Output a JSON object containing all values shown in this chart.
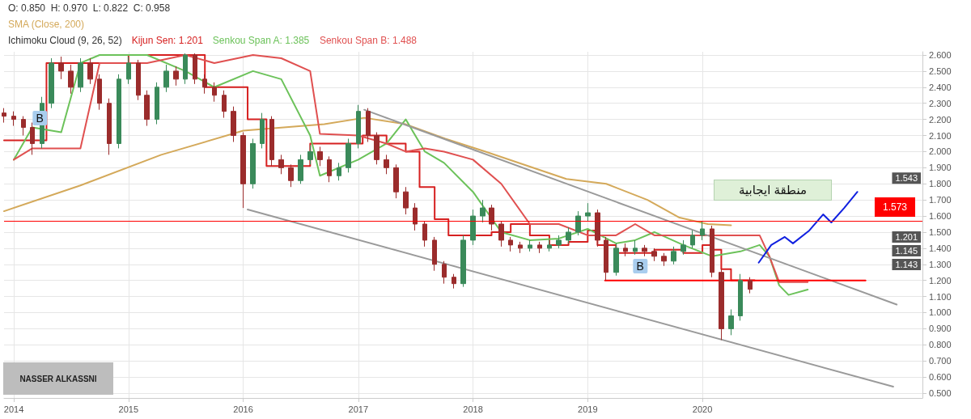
{
  "chart_data": {
    "type": "candlestick",
    "title": "O: 0.850  H: 0.970  L: 0.822  C: 0.958",
    "subtitle": "Ichimoku Cloud (9, 26, 52)",
    "x": [
      "2013-12",
      "2014-01",
      "2014-02",
      "2014-03",
      "2014-04",
      "2014-05",
      "2014-06",
      "2014-07",
      "2014-08",
      "2014-09",
      "2014-10",
      "2014-11",
      "2014-12",
      "2015-01",
      "2015-02",
      "2015-03",
      "2015-04",
      "2015-05",
      "2015-06",
      "2015-07",
      "2015-08",
      "2015-09",
      "2015-10",
      "2015-11",
      "2015-12",
      "2016-01",
      "2016-02",
      "2016-03",
      "2016-04",
      "2016-05",
      "2016-06",
      "2016-07",
      "2016-08",
      "2016-09",
      "2016-10",
      "2016-11",
      "2016-12",
      "2017-01",
      "2017-02",
      "2017-03",
      "2017-04",
      "2017-05",
      "2017-06",
      "2017-07",
      "2017-08",
      "2017-09",
      "2017-10",
      "2017-11",
      "2017-12",
      "2018-01",
      "2018-02",
      "2018-03",
      "2018-04",
      "2018-05",
      "2018-06",
      "2018-07",
      "2018-08",
      "2018-09",
      "2018-10",
      "2018-11",
      "2018-12",
      "2019-01",
      "2019-02",
      "2019-03",
      "2019-04",
      "2019-05",
      "2019-06",
      "2019-07",
      "2019-08",
      "2019-09",
      "2019-10",
      "2019-11",
      "2019-12",
      "2020-01",
      "2020-02",
      "2020-03",
      "2020-04",
      "2020-05",
      "2020-06"
    ],
    "xlim": [
      "2013-12-01",
      "2021-12-01"
    ],
    "xticks": [
      "2014",
      "2015",
      "2016",
      "2017",
      "2018",
      "2019",
      "2020"
    ],
    "ylim": [
      0.47,
      2.62
    ],
    "yticks": [
      {
        "value": 0.5,
        "label": "0.500"
      },
      {
        "value": 0.6,
        "label": "0.600"
      },
      {
        "value": 0.7,
        "label": "0.700"
      },
      {
        "value": 0.8,
        "label": "0.800"
      },
      {
        "value": 0.9,
        "label": "0.900"
      },
      {
        "value": 1.0,
        "label": "1.000"
      },
      {
        "value": 1.1,
        "label": "1.100"
      },
      {
        "value": 1.2,
        "label": "1.200"
      },
      {
        "value": 1.3,
        "label": "1.300"
      },
      {
        "value": 1.4,
        "label": "1.400"
      },
      {
        "value": 1.5,
        "label": "1.500"
      },
      {
        "value": 1.6,
        "label": "1.600"
      },
      {
        "value": 1.7,
        "label": "1.700"
      },
      {
        "value": 1.8,
        "label": "1.800"
      },
      {
        "value": 1.9,
        "label": "1.900"
      },
      {
        "value": 2.0,
        "label": "2.000"
      },
      {
        "value": 2.1,
        "label": "2.100"
      },
      {
        "value": 2.2,
        "label": "2.200"
      },
      {
        "value": 2.3,
        "label": "2.300"
      },
      {
        "value": 2.4,
        "label": "2.400"
      },
      {
        "value": 2.5,
        "label": "2.500"
      },
      {
        "value": 2.6,
        "label": "2.600"
      }
    ],
    "grid": true,
    "marker": "none",
    "series": [
      {
        "ohlc": [
          [
            2.24,
            2.27,
            2.18,
            2.22
          ],
          [
            2.22,
            2.25,
            2.16,
            2.2
          ],
          [
            2.2,
            2.22,
            2.1,
            2.15
          ],
          [
            2.15,
            2.18,
            1.98,
            2.05
          ],
          [
            2.05,
            2.34,
            2.02,
            2.3
          ],
          [
            2.3,
            2.58,
            2.27,
            2.55
          ],
          [
            2.55,
            2.59,
            2.45,
            2.5
          ],
          [
            2.5,
            2.54,
            2.36,
            2.4
          ],
          [
            2.4,
            2.58,
            2.37,
            2.55
          ],
          [
            2.55,
            2.58,
            2.42,
            2.45
          ],
          [
            2.45,
            2.48,
            2.26,
            2.3
          ],
          [
            2.3,
            2.33,
            1.98,
            2.05
          ],
          [
            2.05,
            2.48,
            2.02,
            2.45
          ],
          [
            2.45,
            2.59,
            2.42,
            2.55
          ],
          [
            2.55,
            2.57,
            2.32,
            2.35
          ],
          [
            2.35,
            2.38,
            2.16,
            2.2
          ],
          [
            2.2,
            2.43,
            2.17,
            2.4
          ],
          [
            2.4,
            2.54,
            2.37,
            2.5
          ],
          [
            2.5,
            2.53,
            2.41,
            2.45
          ],
          [
            2.45,
            2.61,
            2.42,
            2.6
          ],
          [
            2.6,
            2.61,
            2.42,
            2.45
          ],
          [
            2.45,
            2.48,
            2.36,
            2.4
          ],
          [
            2.4,
            2.43,
            2.31,
            2.35
          ],
          [
            2.35,
            2.38,
            2.21,
            2.25
          ],
          [
            2.25,
            2.28,
            2.06,
            2.1
          ],
          [
            2.1,
            2.12,
            1.65,
            1.8
          ],
          [
            1.8,
            2.08,
            1.77,
            2.05
          ],
          [
            2.05,
            2.24,
            2.02,
            2.2
          ],
          [
            2.2,
            2.22,
            1.91,
            1.95
          ],
          [
            1.95,
            1.98,
            1.86,
            1.9
          ],
          [
            1.9,
            1.92,
            1.78,
            1.82
          ],
          [
            1.82,
            1.98,
            1.8,
            1.95
          ],
          [
            1.95,
            2.04,
            1.92,
            2.0
          ],
          [
            2.0,
            2.03,
            1.91,
            1.95
          ],
          [
            1.95,
            1.97,
            1.81,
            1.85
          ],
          [
            1.85,
            1.93,
            1.82,
            1.9
          ],
          [
            1.9,
            2.08,
            1.87,
            2.05
          ],
          [
            2.05,
            2.29,
            2.02,
            2.25
          ],
          [
            2.25,
            2.27,
            2.06,
            2.1
          ],
          [
            2.1,
            2.12,
            1.92,
            1.95
          ],
          [
            1.95,
            1.98,
            1.86,
            1.9
          ],
          [
            1.9,
            1.92,
            1.71,
            1.75
          ],
          [
            1.75,
            1.78,
            1.61,
            1.65
          ],
          [
            1.65,
            1.68,
            1.51,
            1.55
          ],
          [
            1.55,
            1.57,
            1.41,
            1.45
          ],
          [
            1.45,
            1.47,
            1.26,
            1.3
          ],
          [
            1.3,
            1.32,
            1.18,
            1.22
          ],
          [
            1.22,
            1.24,
            1.15,
            1.18
          ],
          [
            1.18,
            1.48,
            1.16,
            1.45
          ],
          [
            1.45,
            1.64,
            1.42,
            1.6
          ],
          [
            1.6,
            1.7,
            1.56,
            1.65
          ],
          [
            1.65,
            1.67,
            1.51,
            1.55
          ],
          [
            1.55,
            1.57,
            1.41,
            1.45
          ],
          [
            1.45,
            1.47,
            1.38,
            1.42
          ],
          [
            1.42,
            1.44,
            1.37,
            1.4
          ],
          [
            1.4,
            1.45,
            1.38,
            1.42
          ],
          [
            1.42,
            1.44,
            1.37,
            1.4
          ],
          [
            1.4,
            1.45,
            1.38,
            1.42
          ],
          [
            1.42,
            1.48,
            1.4,
            1.45
          ],
          [
            1.45,
            1.53,
            1.43,
            1.5
          ],
          [
            1.5,
            1.63,
            1.48,
            1.6
          ],
          [
            1.6,
            1.68,
            1.57,
            1.62
          ],
          [
            1.62,
            1.64,
            1.41,
            1.45
          ],
          [
            1.45,
            1.47,
            1.2,
            1.25
          ],
          [
            1.25,
            1.43,
            1.23,
            1.4
          ],
          [
            1.4,
            1.43,
            1.35,
            1.38
          ],
          [
            1.38,
            1.45,
            1.36,
            1.4
          ],
          [
            1.4,
            1.42,
            1.35,
            1.38
          ],
          [
            1.38,
            1.4,
            1.32,
            1.35
          ],
          [
            1.35,
            1.37,
            1.29,
            1.32
          ],
          [
            1.32,
            1.41,
            1.3,
            1.38
          ],
          [
            1.38,
            1.45,
            1.36,
            1.42
          ],
          [
            1.42,
            1.51,
            1.4,
            1.48
          ],
          [
            1.48,
            1.57,
            1.45,
            1.52
          ],
          [
            1.52,
            1.54,
            1.22,
            1.25
          ],
          [
            1.25,
            1.27,
            0.83,
            0.9
          ],
          [
            0.9,
            1.02,
            0.86,
            0.98
          ],
          [
            0.98,
            1.24,
            0.95,
            1.2
          ],
          [
            1.2,
            1.22,
            1.12,
            1.145
          ]
        ],
        "colors": [
          "#9b2c2c",
          "#9b2c2c",
          "#9b2c2c",
          "#9b2c2c",
          "#3a8a5a",
          "#3a8a5a",
          "#9b2c2c",
          "#9b2c2c",
          "#3a8a5a",
          "#9b2c2c",
          "#9b2c2c",
          "#9b2c2c",
          "#3a8a5a",
          "#3a8a5a",
          "#9b2c2c",
          "#9b2c2c",
          "#3a8a5a",
          "#3a8a5a",
          "#9b2c2c",
          "#3a8a5a",
          "#9b2c2c",
          "#9b2c2c",
          "#9b2c2c",
          "#9b2c2c",
          "#9b2c2c",
          "#9b2c2c",
          "#3a8a5a",
          "#3a8a5a",
          "#9b2c2c",
          "#9b2c2c",
          "#9b2c2c",
          "#3a8a5a",
          "#3a8a5a",
          "#9b2c2c",
          "#9b2c2c",
          "#3a8a5a",
          "#3a8a5a",
          "#3a8a5a",
          "#9b2c2c",
          "#9b2c2c",
          "#9b2c2c",
          "#9b2c2c",
          "#9b2c2c",
          "#9b2c2c",
          "#9b2c2c",
          "#9b2c2c",
          "#9b2c2c",
          "#9b2c2c",
          "#3a8a5a",
          "#3a8a5a",
          "#3a8a5a",
          "#9b2c2c",
          "#9b2c2c",
          "#9b2c2c",
          "#9b2c2c",
          "#3a8a5a",
          "#9b2c2c",
          "#3a8a5a",
          "#3a8a5a",
          "#3a8a5a",
          "#3a8a5a",
          "#3a8a5a",
          "#9b2c2c",
          "#9b2c2c",
          "#3a8a5a",
          "#9b2c2c",
          "#3a8a5a",
          "#9b2c2c",
          "#9b2c2c",
          "#9b2c2c",
          "#3a8a5a",
          "#3a8a5a",
          "#3a8a5a",
          "#3a8a5a",
          "#9b2c2c",
          "#9b2c2c",
          "#3a8a5a",
          "#3a8a5a",
          "#9b2c2c"
        ]
      },
      {
        "type": "line",
        "name": "SMA (Close, 200)",
        "color": "#d4a95a",
        "x": [
          "2013-12-01",
          "2014-08-01",
          "2015-04-15",
          "2016-01-01",
          "2016-09-15",
          "2017-01-20",
          "2017-06-01",
          "2017-10-05",
          "2018-02-10",
          "2018-10-25",
          "2019-03-01",
          "2019-07-10",
          "2019-10-20",
          "2020-01-18",
          "2020-04-01"
        ],
        "values": [
          1.63,
          1.79,
          1.98,
          2.13,
          2.17,
          2.21,
          2.17,
          2.08,
          2.0,
          1.83,
          1.8,
          1.7,
          1.59,
          1.55,
          1.543
        ]
      },
      {
        "type": "step",
        "name": "Kijun Sen: 1.201",
        "color": "#d62020",
        "x": [
          "2013-12-01",
          "2014-04-15",
          "2015-01-01",
          "2015-09-01",
          "2016-01-15",
          "2016-03-15",
          "2016-08-01",
          "2017-01-15",
          "2017-04-01",
          "2017-06-01",
          "2017-07-15",
          "2017-09-01",
          "2017-10-15",
          "2018-03-01",
          "2018-05-01",
          "2018-07-01",
          "2018-09-01",
          "2018-11-01",
          "2019-01-01",
          "2019-02-01",
          "2019-04-01",
          "2019-08-01",
          "2019-11-01",
          "2020-01-01",
          "2020-02-01",
          "2020-03-01",
          "2020-04-01",
          "2020-06-15"
        ],
        "values": [
          2.07,
          2.55,
          2.6,
          2.4,
          2.2,
          1.91,
          2.05,
          2.1,
          2.05,
          2.0,
          1.78,
          1.58,
          1.48,
          1.5,
          1.55,
          1.48,
          1.42,
          1.44,
          1.51,
          1.42,
          1.37,
          1.39,
          1.37,
          1.42,
          1.39,
          1.27,
          1.201,
          1.201
        ]
      },
      {
        "type": "line",
        "name": "Senkou Span A: 1.385",
        "color": "#6cc25a",
        "x": [
          "2014-01-01",
          "2014-03-01",
          "2014-06-01",
          "2014-08-01",
          "2014-10-01",
          "2015-03-01",
          "2015-07-01",
          "2015-10-01",
          "2016-02-01",
          "2016-05-01",
          "2016-08-01",
          "2016-09-01",
          "2017-01-01",
          "2017-04-01",
          "2017-06-01",
          "2017-08-01",
          "2017-10-01",
          "2018-01-01",
          "2018-04-01",
          "2018-07-01",
          "2018-10-01",
          "2019-01-01",
          "2019-04-01",
          "2019-06-01",
          "2019-08-01",
          "2019-11-01",
          "2020-02-01",
          "2020-05-01",
          "2020-07-01",
          "2020-08-01",
          "2020-09-01",
          "2020-10-01",
          "2020-12-01"
        ],
        "values": [
          1.95,
          2.15,
          2.12,
          2.55,
          2.6,
          2.6,
          2.5,
          2.4,
          2.5,
          2.45,
          2.1,
          1.85,
          1.95,
          2.05,
          2.2,
          2.0,
          1.93,
          1.75,
          1.5,
          1.45,
          1.46,
          1.52,
          1.43,
          1.45,
          1.5,
          1.42,
          1.35,
          1.38,
          1.42,
          1.35,
          1.17,
          1.11,
          1.143
        ]
      },
      {
        "type": "line",
        "name": "Senkou Span B: 1.488",
        "color": "#e05050",
        "x": [
          "2014-01-01",
          "2014-03-01",
          "2014-06-01",
          "2014-08-01",
          "2014-10-01",
          "2015-03-01",
          "2015-07-01",
          "2015-10-01",
          "2016-02-01",
          "2016-05-01",
          "2016-08-01",
          "2016-09-01",
          "2017-01-01",
          "2017-04-01",
          "2017-06-01",
          "2017-08-01",
          "2017-10-01",
          "2018-01-01",
          "2018-04-01",
          "2018-07-01",
          "2018-10-01",
          "2019-01-01",
          "2019-04-01",
          "2019-06-01",
          "2019-08-01",
          "2019-11-01",
          "2020-02-01",
          "2020-05-01",
          "2020-07-01",
          "2020-08-01",
          "2020-09-01",
          "2020-10-01",
          "2020-12-01"
        ],
        "values": [
          1.95,
          2.02,
          2.02,
          2.02,
          2.55,
          2.55,
          2.6,
          2.55,
          2.6,
          2.58,
          2.5,
          2.11,
          2.1,
          2.05,
          2.0,
          2.02,
          2.0,
          1.95,
          1.8,
          1.55,
          1.55,
          1.48,
          1.48,
          1.55,
          1.48,
          1.48,
          1.48,
          1.48,
          1.48,
          1.35,
          1.19,
          1.19,
          1.19
        ]
      },
      {
        "type": "line",
        "color": "#9a9a9a",
        "x": [
          "2017-01-20",
          "2021-09-10"
        ],
        "values": [
          2.26,
          1.05
        ]
      },
      {
        "type": "line",
        "color": "#9a9a9a",
        "x": [
          "2016-01-15",
          "2021-08-30"
        ],
        "values": [
          1.64,
          0.54
        ]
      },
      {
        "type": "line",
        "color": "#1020e0",
        "x": [
          "2020-06-28",
          "2020-08-07",
          "2020-09-19",
          "2020-10-15",
          "2020-12-06",
          "2021-01-19",
          "2021-02-14",
          "2021-03-27",
          "2021-05-08"
        ],
        "values": [
          1.31,
          1.42,
          1.47,
          1.43,
          1.51,
          1.61,
          1.56,
          1.65,
          1.75
        ]
      },
      {
        "type": "line",
        "color": "#ff0000",
        "x": [
          "2019-02-25",
          "2021-06-03"
        ],
        "values": [
          1.2,
          1.2
        ]
      }
    ],
    "ref_lines": [
      {
        "axis": "y",
        "value": 1.573,
        "label": "1.573",
        "color": "#ff0000"
      }
    ],
    "annotations": [
      "منطقة ايجابية",
      {
        "text": "B",
        "x": "2014-03-25",
        "y": 2.13
      },
      {
        "text": "B",
        "x": "2019-06-17",
        "y": 1.21
      },
      "1.543",
      "1.201",
      "1.145",
      "1.143",
      "NASSER ALKASSNI"
    ]
  }
}
